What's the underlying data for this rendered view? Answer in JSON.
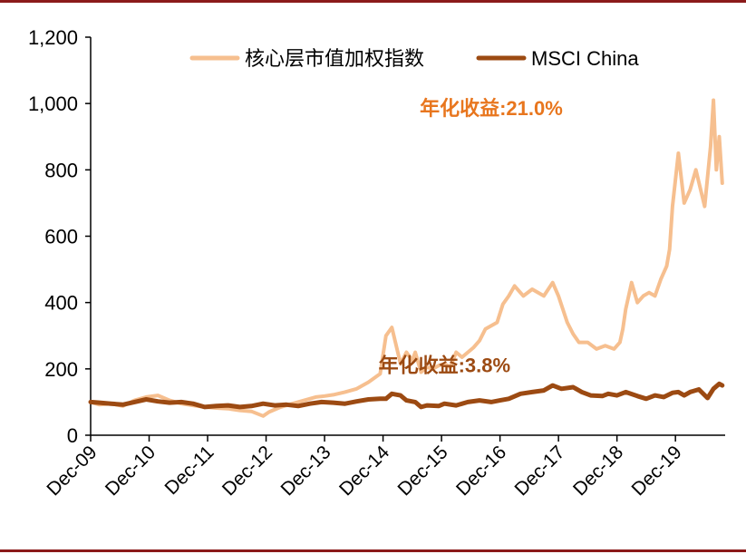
{
  "chart_data": {
    "type": "line",
    "title": "",
    "xlabel": "",
    "ylabel": "",
    "ylim": [
      0,
      1200
    ],
    "y_ticks": [
      "0",
      "200",
      "400",
      "600",
      "800",
      "1,000",
      "1,200"
    ],
    "x_ticks": [
      "Dec-09",
      "Dec-10",
      "Dec-11",
      "Dec-12",
      "Dec-13",
      "Dec-14",
      "Dec-15",
      "Dec-16",
      "Dec-17",
      "Dec-18",
      "Dec-19"
    ],
    "grid": false,
    "legend": {
      "placement": "top",
      "entries": [
        {
          "label": "核心层市值加权指数",
          "color": "#f6bf8f"
        },
        {
          "label": "MSCI China",
          "color": "#9c4a12"
        }
      ]
    },
    "series": [
      {
        "name": "核心层市值加权指数",
        "color": "#f6bf8f",
        "x": [
          2009.95,
          2010.1,
          2010.3,
          2010.5,
          2010.7,
          2010.9,
          2011.1,
          2011.3,
          2011.5,
          2011.7,
          2011.9,
          2012.1,
          2012.3,
          2012.5,
          2012.7,
          2012.9,
          2013.0,
          2013.2,
          2013.4,
          2013.6,
          2013.8,
          2013.95,
          2014.1,
          2014.3,
          2014.5,
          2014.7,
          2014.9,
          2015.0,
          2015.1,
          2015.25,
          2015.35,
          2015.45,
          2015.5,
          2015.6,
          2015.7,
          2015.8,
          2015.9,
          2016.0,
          2016.1,
          2016.2,
          2016.3,
          2016.5,
          2016.6,
          2016.7,
          2016.9,
          2017.0,
          2017.1,
          2017.2,
          2017.35,
          2017.5,
          2017.7,
          2017.85,
          2017.95,
          2018.1,
          2018.2,
          2018.3,
          2018.45,
          2018.6,
          2018.75,
          2018.9,
          2019.0,
          2019.05,
          2019.1,
          2019.2,
          2019.3,
          2019.4,
          2019.5,
          2019.6,
          2019.7,
          2019.8,
          2019.85,
          2019.9,
          2020.0,
          2020.1,
          2020.2,
          2020.3,
          2020.45,
          2020.55,
          2020.6,
          2020.65,
          2020.7,
          2020.75
        ],
        "values": [
          100,
          92,
          95,
          88,
          105,
          115,
          120,
          105,
          95,
          90,
          85,
          82,
          80,
          75,
          72,
          58,
          70,
          85,
          95,
          105,
          115,
          118,
          122,
          130,
          140,
          160,
          185,
          300,
          325,
          215,
          250,
          225,
          250,
          190,
          205,
          200,
          210,
          215,
          205,
          250,
          235,
          265,
          285,
          320,
          340,
          395,
          420,
          450,
          420,
          440,
          420,
          460,
          420,
          340,
          305,
          280,
          280,
          260,
          270,
          260,
          280,
          320,
          380,
          460,
          400,
          420,
          430,
          420,
          470,
          510,
          560,
          690,
          850,
          700,
          740,
          800,
          690,
          870,
          1010,
          800,
          900,
          760
        ]
      },
      {
        "name": "MSCI China",
        "color": "#9c4a12",
        "x": [
          2009.95,
          2010.1,
          2010.3,
          2010.5,
          2010.7,
          2010.9,
          2011.1,
          2011.3,
          2011.5,
          2011.7,
          2011.9,
          2012.1,
          2012.3,
          2012.5,
          2012.7,
          2012.9,
          2013.1,
          2013.3,
          2013.5,
          2013.7,
          2013.9,
          2014.1,
          2014.3,
          2014.5,
          2014.7,
          2014.9,
          2015.0,
          2015.1,
          2015.25,
          2015.35,
          2015.5,
          2015.6,
          2015.7,
          2015.9,
          2016.0,
          2016.2,
          2016.4,
          2016.6,
          2016.8,
          2016.95,
          2017.1,
          2017.3,
          2017.5,
          2017.7,
          2017.85,
          2018.0,
          2018.2,
          2018.35,
          2018.5,
          2018.7,
          2018.8,
          2018.95,
          2019.1,
          2019.3,
          2019.45,
          2019.6,
          2019.75,
          2019.9,
          2020.0,
          2020.1,
          2020.2,
          2020.35,
          2020.5,
          2020.6,
          2020.7,
          2020.75
        ],
        "values": [
          100,
          98,
          95,
          92,
          100,
          108,
          102,
          98,
          100,
          95,
          85,
          88,
          90,
          85,
          88,
          95,
          90,
          92,
          88,
          95,
          100,
          98,
          95,
          102,
          108,
          110,
          110,
          125,
          120,
          105,
          100,
          85,
          90,
          88,
          95,
          90,
          100,
          105,
          100,
          105,
          110,
          125,
          130,
          135,
          150,
          140,
          145,
          130,
          120,
          118,
          125,
          120,
          130,
          118,
          110,
          120,
          115,
          128,
          130,
          120,
          130,
          138,
          112,
          140,
          155,
          150
        ]
      }
    ],
    "annotations": [
      {
        "text": "年化收益:21.0%",
        "prefix": "年化收益:",
        "value": "21.0%",
        "x": 2016.8,
        "y": 965,
        "color": "#e8761e"
      },
      {
        "text": "年化收益:3.8%",
        "prefix": "年化收益:",
        "value": "3.8%",
        "x": 2016.0,
        "y": 190,
        "color": "#9c4a12"
      }
    ]
  }
}
